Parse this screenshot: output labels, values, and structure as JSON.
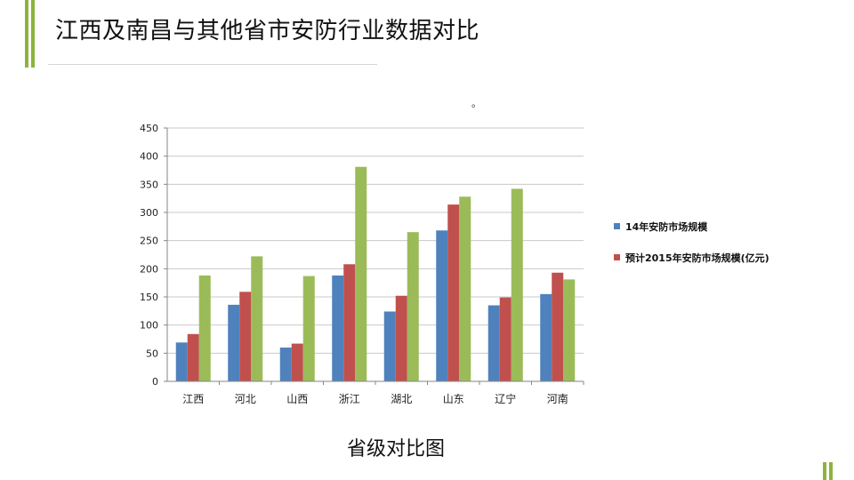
{
  "slide": {
    "title": "江西及南昌与其他省市安防行业数据对比",
    "stray_mark": "。",
    "accent_color": "#8cb43a"
  },
  "chart_data": {
    "type": "bar",
    "title": "省级对比图",
    "categories": [
      "江西",
      "河北",
      "山西",
      "浙江",
      "湖北",
      "山东",
      "辽宁",
      "河南"
    ],
    "series": [
      {
        "name": "14年安防市场规模",
        "color": "#4f81bd",
        "values": [
          69,
          136,
          60,
          188,
          124,
          268,
          135,
          155
        ]
      },
      {
        "name": "预计2015年安防市场规模(亿元)",
        "color": "#c0504d",
        "values": [
          84,
          159,
          67,
          208,
          152,
          314,
          149,
          193
        ]
      },
      {
        "color": "#9bbb59",
        "values": [
          188,
          222,
          187,
          381,
          265,
          328,
          342,
          181
        ]
      }
    ],
    "y_axis": {
      "min": 0,
      "max": 450,
      "step": 50,
      "tick_labels": [
        "0",
        "50",
        "100",
        "150",
        "200",
        "250",
        "300",
        "350",
        "400",
        "450"
      ]
    },
    "grid": true,
    "legend_position": "right"
  }
}
